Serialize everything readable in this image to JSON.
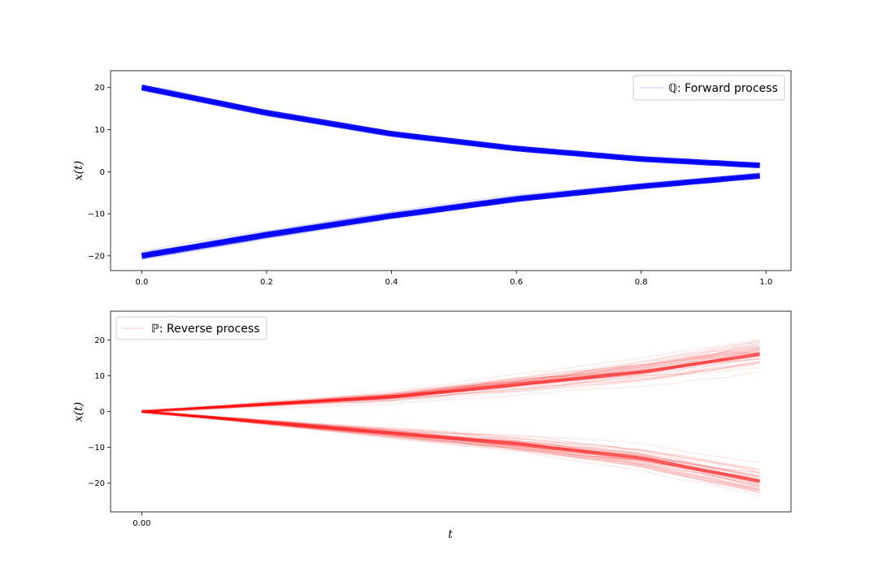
{
  "chart_data": [
    {
      "type": "line",
      "panel": "top",
      "title": "",
      "xlabel": "",
      "ylabel": "x(t)",
      "xlim": [
        -0.05,
        1.04
      ],
      "ylim": [
        -23.5,
        24
      ],
      "xticks": [
        0.0,
        0.2,
        0.4,
        0.6,
        0.8,
        1.0
      ],
      "xtick_labels": [
        "0.0",
        "0.2",
        "0.4",
        "0.6",
        "0.8",
        "1.0"
      ],
      "yticks": [
        -20,
        -10,
        0,
        10,
        20
      ],
      "ytick_labels": [
        "−20",
        "−10",
        "0",
        "10",
        "20"
      ],
      "grid": false,
      "legend": {
        "label": "ℚ: Forward process",
        "placement": "upper-right"
      },
      "color": "#0000ff",
      "series": [
        {
          "x": [
            0.0,
            0.2,
            0.4,
            0.6,
            0.8,
            0.99
          ],
          "y": [
            20,
            14,
            9,
            5.5,
            3,
            1.5
          ],
          "spread": 0.8
        },
        {
          "x": [
            0.0,
            0.2,
            0.4,
            0.6,
            0.8,
            0.99
          ],
          "y": [
            -20,
            -15,
            -10.5,
            -6.5,
            -3.5,
            -1
          ],
          "spread": 1.0
        }
      ]
    },
    {
      "type": "line",
      "panel": "bottom",
      "title": "",
      "xlabel": "t",
      "ylabel": "x(t)",
      "xlim": [
        -0.05,
        1.04
      ],
      "ylim": [
        -28,
        28
      ],
      "xticks": [
        0.0
      ],
      "xtick_labels": [
        "0.00"
      ],
      "yticks": [
        -20,
        -10,
        0,
        10,
        20
      ],
      "ytick_labels": [
        "−20",
        "−10",
        "0",
        "10",
        "20"
      ],
      "grid": false,
      "legend": {
        "label": "ℙ: Reverse process",
        "placement": "upper-left"
      },
      "color": "#ff0000",
      "series": [
        {
          "x": [
            0.0,
            0.2,
            0.4,
            0.6,
            0.8,
            0.99
          ],
          "y": [
            0,
            2,
            4,
            7.5,
            11,
            16
          ],
          "spread": 3.5
        },
        {
          "x": [
            0.0,
            0.2,
            0.4,
            0.6,
            0.8,
            0.99
          ],
          "y": [
            0,
            -3,
            -6,
            -9,
            -13,
            -19.5
          ],
          "spread": 3.0
        }
      ]
    }
  ]
}
